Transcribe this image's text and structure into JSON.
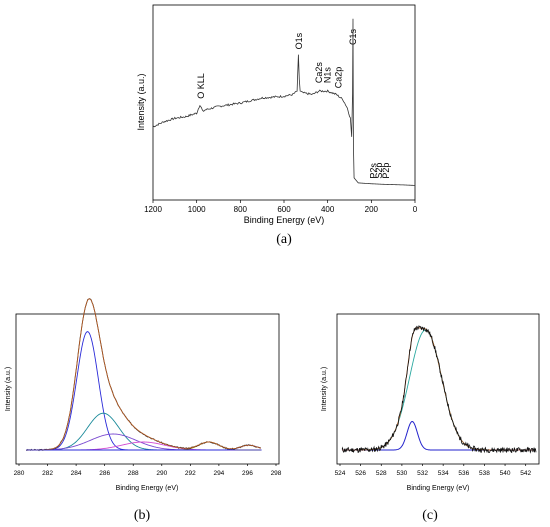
{
  "colors": {
    "spectrum": "#333333",
    "envelope": "#b85a1f",
    "c_component_1": "#2a2ad8",
    "c_component_2": "#1a8a9a",
    "c_component_3": "#7a4ad0",
    "c_minor": "#8a7a10",
    "background_b": "#d24ad2",
    "o_main": "#2aa8a0",
    "o_minor": "#2222cc"
  },
  "captions": {
    "a": "(a)",
    "b": "(b)",
    "c": "(c)"
  },
  "chart_data": [
    {
      "panel": "a",
      "type": "line",
      "xlabel": "Binding Energy (eV)",
      "ylabel": "Intensity (a.u.)",
      "xlim": [
        1200,
        0
      ],
      "x_reversed": true,
      "xticks": [
        1200,
        1000,
        800,
        600,
        400,
        200,
        0
      ],
      "grid": false,
      "annotations": [
        {
          "text": "O KLL",
          "x": 980
        },
        {
          "text": "O1s",
          "x": 532
        },
        {
          "text": "Ca2s",
          "x": 440
        },
        {
          "text": "N1s",
          "x": 400
        },
        {
          "text": "Ca2p",
          "x": 350
        },
        {
          "text": "C1s",
          "x": 285
        },
        {
          "text": "P2s",
          "x": 190
        },
        {
          "text": "S2p",
          "x": 165
        },
        {
          "text": "P2p",
          "x": 133
        }
      ],
      "series": [
        {
          "x": [
            1200,
            1150,
            1100,
            1050,
            1000,
            985,
            978,
            972,
            960,
            900,
            800,
            700,
            600,
            560,
            540,
            534,
            530,
            526,
            515,
            470,
            440,
            400,
            360,
            330,
            310,
            296,
            290,
            286,
            284,
            282,
            279,
            260,
            200,
            150,
            100,
            50,
            0
          ],
          "y": [
            0.36,
            0.39,
            0.41,
            0.42,
            0.44,
            0.49,
            0.47,
            0.45,
            0.46,
            0.48,
            0.5,
            0.53,
            0.54,
            0.55,
            0.57,
            0.78,
            0.64,
            0.57,
            0.56,
            0.55,
            0.57,
            0.57,
            0.55,
            0.52,
            0.47,
            0.41,
            0.3,
            0.55,
            1.0,
            0.25,
            0.06,
            0.03,
            0.025,
            0.022,
            0.02,
            0.018,
            0.015
          ]
        }
      ]
    },
    {
      "panel": "b",
      "type": "line",
      "xlabel": "Binding Energy (eV)",
      "ylabel": "Intensity (a.u.)",
      "xlim": [
        280,
        296
      ],
      "xticks": [
        280,
        282,
        284,
        286,
        288,
        290,
        292,
        294,
        296,
        298
      ],
      "grid": false,
      "components": [
        {
          "center": 284.8,
          "height": 0.74,
          "width": 0.75
        },
        {
          "center": 285.9,
          "height": 0.23,
          "width": 1.1
        },
        {
          "center": 286.6,
          "height": 0.1,
          "width": 1.6
        },
        {
          "center": 288.7,
          "height": 0.05,
          "width": 1.5
        },
        {
          "center": 293.3,
          "height": 0.05,
          "width": 0.7
        },
        {
          "center": 296.1,
          "height": 0.03,
          "width": 0.6
        }
      ]
    },
    {
      "panel": "c",
      "type": "line",
      "xlabel": "Binding Energy (eV)",
      "ylabel": "Intensity (a.u.)",
      "xlim": [
        524,
        543
      ],
      "xticks": [
        524,
        526,
        528,
        530,
        532,
        534,
        536,
        538,
        540,
        542
      ],
      "grid": false,
      "components": [
        {
          "center": 532.3,
          "height": 0.8,
          "width": 1.55
        },
        {
          "center": 531.0,
          "height": 0.19,
          "width": 0.5
        }
      ]
    }
  ]
}
